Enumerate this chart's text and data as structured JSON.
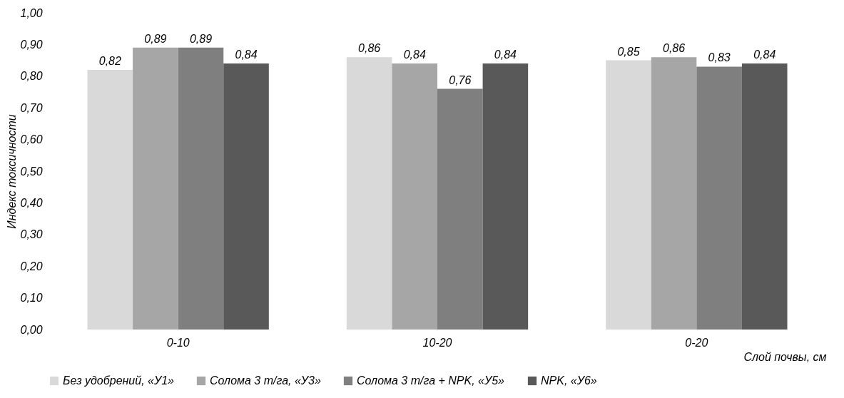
{
  "chart_data": {
    "type": "bar",
    "xlabel": "Слой почвы, см",
    "ylabel": "Индекс токсичности",
    "categories": [
      "0-10",
      "10-20",
      "0-20"
    ],
    "series": [
      {
        "name": "Без удобрений, «У1»",
        "color": "#d9d9d9",
        "values": [
          0.82,
          0.86,
          0.85
        ],
        "value_labels": [
          "0,82",
          "0,86",
          "0,85"
        ]
      },
      {
        "name": "Солома 3 т/га, «У3»",
        "color": "#a6a6a6",
        "values": [
          0.89,
          0.84,
          0.86
        ],
        "value_labels": [
          "0,89",
          "0,84",
          "0,86"
        ]
      },
      {
        "name": "Солома 3 т/га + NPK, «У5»",
        "color": "#7f7f7f",
        "values": [
          0.89,
          0.76,
          0.83
        ],
        "value_labels": [
          "0,89",
          "0,76",
          "0,83"
        ]
      },
      {
        "name": "NPK, «У6»",
        "color": "#595959",
        "values": [
          0.84,
          0.84,
          0.84
        ],
        "value_labels": [
          "0,84",
          "0,84",
          "0,84"
        ]
      }
    ],
    "ylim": [
      0,
      1
    ],
    "yticks": [
      {
        "value": 0,
        "label": "0,00"
      },
      {
        "value": 0.1,
        "label": "0,10"
      },
      {
        "value": 0.2,
        "label": "0,20"
      },
      {
        "value": 0.3,
        "label": "0,30"
      },
      {
        "value": 0.4,
        "label": "0,40"
      },
      {
        "value": 0.5,
        "label": "0,50"
      },
      {
        "value": 0.6,
        "label": "0,60"
      },
      {
        "value": 0.7,
        "label": "0,70"
      },
      {
        "value": 0.8,
        "label": "0,80"
      },
      {
        "value": 0.9,
        "label": "0,90"
      },
      {
        "value": 1,
        "label": "1,00"
      }
    ],
    "grid": false,
    "legend": "bottom"
  }
}
